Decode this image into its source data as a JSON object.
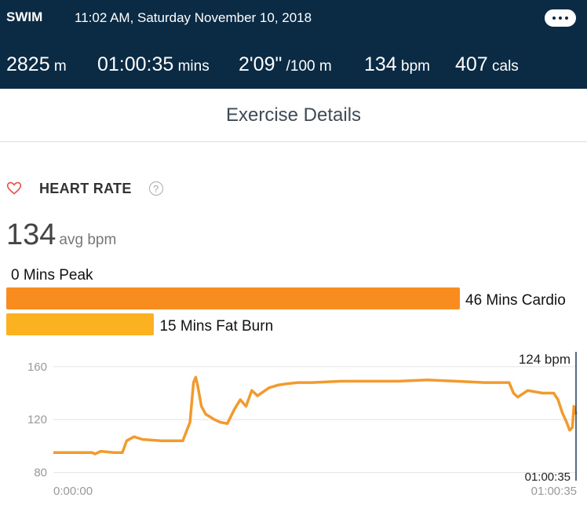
{
  "header": {
    "activity": "SWIM",
    "datetime": "11:02 AM, Saturday November 10, 2018",
    "more_icon": "ellipsis-icon"
  },
  "stats": [
    {
      "value": "2825",
      "unit": " m"
    },
    {
      "value": "01:00:35",
      "unit": " mins"
    },
    {
      "value": "2'09\"",
      "unit": " /100 m"
    },
    {
      "value": "134",
      "unit": " bpm"
    },
    {
      "value": "407",
      "unit": " cals"
    }
  ],
  "subheader": "Exercise Details",
  "heart_rate": {
    "title": "HEART RATE",
    "help": "?",
    "avg_value": "134",
    "avg_unit": "avg bpm",
    "zones": {
      "peak": {
        "label": "0 Mins Peak",
        "minutes": 0
      },
      "cardio": {
        "label": "46 Mins Cardio",
        "minutes": 46,
        "color": "#f98c1e"
      },
      "fatburn": {
        "label": "15 Mins Fat Burn",
        "minutes": 15,
        "color": "#fbb120"
      }
    }
  },
  "chart_data": {
    "type": "line",
    "y_ticks": [
      80,
      120,
      160
    ],
    "ylim": [
      75,
      170
    ],
    "xlim": [
      0,
      3635
    ],
    "x_start_label": "0:00:00",
    "x_end_label": "01:00:35",
    "cursor_time_label": "01:00:35",
    "cursor_value_label": "124 bpm",
    "line_color": "#f29a2e",
    "series": [
      {
        "x": [
          0,
          270,
          290,
          330,
          420,
          480,
          510,
          560,
          620,
          750,
          900,
          950,
          975,
          990,
          1005,
          1030,
          1060,
          1090,
          1120,
          1160,
          1210,
          1260,
          1300,
          1340,
          1380,
          1420,
          1460,
          1500,
          1560,
          1620,
          1700,
          1800,
          2000,
          2200,
          2400,
          2600,
          2800,
          3000,
          3100,
          3170,
          3200,
          3230,
          3300,
          3400,
          3450,
          3480,
          3510,
          3540,
          3570,
          3590,
          3610,
          3620,
          3635
        ],
        "y": [
          95,
          95,
          94,
          96,
          95,
          95,
          104,
          107,
          105,
          104,
          104,
          118,
          148,
          152,
          145,
          130,
          124,
          122,
          120,
          118,
          117,
          128,
          135,
          130,
          142,
          138,
          141,
          144,
          146,
          147,
          148,
          148,
          149,
          149,
          149,
          150,
          149,
          148,
          148,
          148,
          140,
          137,
          142,
          140,
          140,
          140,
          135,
          125,
          118,
          112,
          114,
          130,
          124
        ]
      }
    ]
  }
}
